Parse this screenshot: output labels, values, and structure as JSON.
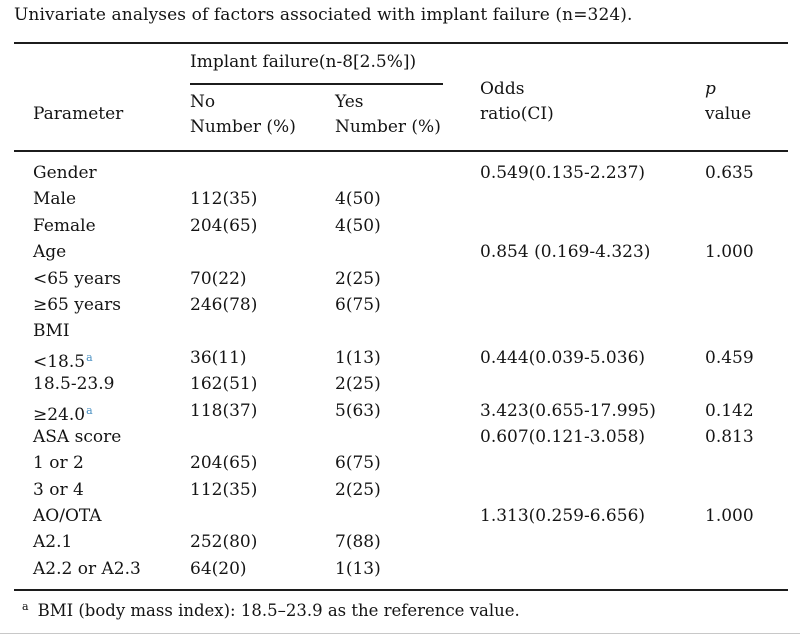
{
  "title": "Univariate analyses of factors associated with implant failure (n=324).",
  "table": {
    "group_header": "Implant failure(n-8[2.5%])",
    "col_parameter": "Parameter",
    "col_no": "No",
    "col_no_sub": "Number (%)",
    "col_yes": "Yes",
    "col_yes_sub": "Number (%)",
    "col_or_line1": "Odds",
    "col_or_line2": "ratio(CI)",
    "col_p_line1": "p",
    "col_p_line2": "value",
    "rows": [
      {
        "param": "Gender",
        "sup": "",
        "no": "",
        "yes": "",
        "or": "0.549(0.135-2.237)",
        "p": "0.635"
      },
      {
        "param": "Male",
        "sup": "",
        "no": "112(35)",
        "yes": "4(50)",
        "or": "",
        "p": ""
      },
      {
        "param": "Female",
        "sup": "",
        "no": "204(65)",
        "yes": "4(50)",
        "or": "",
        "p": ""
      },
      {
        "param": "Age",
        "sup": "",
        "no": "",
        "yes": "",
        "or": "0.854 (0.169-4.323)",
        "p": "1.000"
      },
      {
        "param": "<65 years",
        "sup": "",
        "no": "70(22)",
        "yes": "2(25)",
        "or": "",
        "p": ""
      },
      {
        "param": "≥65 years",
        "sup": "",
        "no": "246(78)",
        "yes": "6(75)",
        "or": "",
        "p": ""
      },
      {
        "param": "BMI",
        "sup": "",
        "no": "",
        "yes": "",
        "or": "",
        "p": ""
      },
      {
        "param": "<18.5",
        "sup": "a",
        "no": "36(11)",
        "yes": "1(13)",
        "or": "0.444(0.039-5.036)",
        "p": "0.459"
      },
      {
        "param": "18.5-23.9",
        "sup": "",
        "no": "162(51)",
        "yes": "2(25)",
        "or": "",
        "p": ""
      },
      {
        "param": "≥24.0",
        "sup": "a",
        "no": "118(37)",
        "yes": "5(63)",
        "or": "3.423(0.655-17.995)",
        "p": "0.142"
      },
      {
        "param": "ASA score",
        "sup": "",
        "no": "",
        "yes": "",
        "or": "0.607(0.121-3.058)",
        "p": "0.813"
      },
      {
        "param": "1 or 2",
        "sup": "",
        "no": "204(65)",
        "yes": "6(75)",
        "or": "",
        "p": ""
      },
      {
        "param": "3 or 4",
        "sup": "",
        "no": "112(35)",
        "yes": "2(25)",
        "or": "",
        "p": ""
      },
      {
        "param": "AO/OTA",
        "sup": "",
        "no": "",
        "yes": "",
        "or": "1.313(0.259-6.656)",
        "p": "1.000"
      },
      {
        "param": "A2.1",
        "sup": "",
        "no": "252(80)",
        "yes": "7(88)",
        "or": "",
        "p": ""
      },
      {
        "param": "A2.2 or A2.3",
        "sup": "",
        "no": "64(20)",
        "yes": "1(13)",
        "or": "",
        "p": ""
      }
    ]
  },
  "footnote": {
    "marker": "a",
    "text": "BMI (body mass index): 18.5–23.9 as the reference value."
  },
  "colors": {
    "superscript_marker": "#4a90c2",
    "text": "#141414",
    "rule": "#1c1c1c"
  }
}
